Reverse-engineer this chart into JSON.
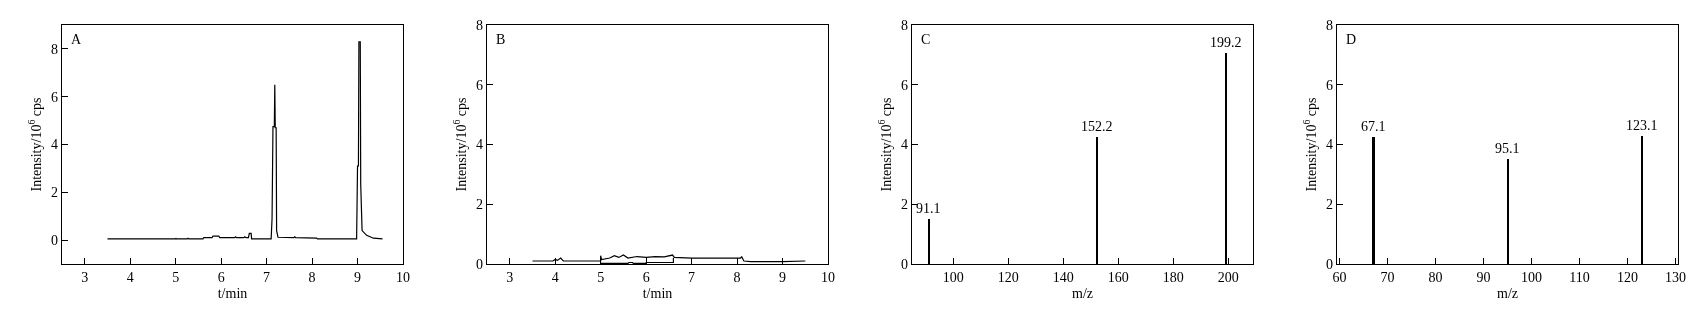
{
  "chart_data": [
    {
      "type": "line",
      "xlabel": "t/min",
      "ylabel": "Intensity/10$^{6}$ cps",
      "annotations": [
        "A"
      ],
      "xlim": [
        2.5,
        10
      ],
      "xticks": [
        3,
        4,
        5,
        6,
        7,
        8,
        9,
        10
      ],
      "ylim": [
        -1,
        9
      ],
      "yticks": [
        0,
        2,
        4,
        6,
        8
      ],
      "series": [
        {
          "color": "#000000",
          "x": [
            3.5,
            5.0,
            5.0,
            5.02,
            5.25,
            5.27,
            5.29,
            5.6,
            5.62,
            5.8,
            5.82,
            5.95,
            5.97,
            6.3,
            6.32,
            6.34,
            6.5,
            6.52,
            6.55,
            6.6,
            6.62,
            6.66,
            6.67,
            7.1,
            7.12,
            7.14,
            7.17,
            7.18,
            7.19,
            7.21,
            7.22,
            7.25,
            7.6,
            7.62,
            7.64,
            8.1,
            8.12,
            8.98,
            9.0,
            9.02,
            9.03,
            9.06,
            9.07,
            9.1,
            9.2,
            9.35,
            9.55
          ],
          "values": [
            0.05,
            0.05,
            0.08,
            0.05,
            0.05,
            0.08,
            0.05,
            0.05,
            0.1,
            0.1,
            0.17,
            0.17,
            0.1,
            0.1,
            0.14,
            0.1,
            0.1,
            0.14,
            0.1,
            0.1,
            0.28,
            0.28,
            0.05,
            0.05,
            0.9,
            4.75,
            4.75,
            6.5,
            4.7,
            4.7,
            0.4,
            0.12,
            0.1,
            0.14,
            0.1,
            0.08,
            0.05,
            0.05,
            3.1,
            3.1,
            8.3,
            8.3,
            2.35,
            0.4,
            0.2,
            0.08,
            0.05
          ]
        }
      ]
    },
    {
      "type": "line",
      "xlabel": "t/min",
      "ylabel": "Intensity/10$^{6}$ cps",
      "annotations": [
        "B"
      ],
      "xlim": [
        2.5,
        10
      ],
      "xticks": [
        3,
        4,
        5,
        6,
        7,
        8,
        9,
        10
      ],
      "ylim": [
        0,
        8
      ],
      "yticks": [
        0,
        2,
        4,
        6,
        8
      ],
      "series": [
        {
          "color": "#000000",
          "x": [
            3.5,
            3.95,
            4.0,
            4.05,
            4.12,
            4.18,
            5.0,
            5.0,
            5.02,
            5.2,
            5.3,
            5.4,
            5.5,
            5.6,
            5.8,
            6.0,
            6.2,
            6.4,
            6.58,
            6.62,
            7.0,
            8.08,
            8.1,
            8.15,
            8.3,
            9.0,
            9.5
          ],
          "values": [
            0.1,
            0.1,
            0.15,
            0.12,
            0.2,
            0.1,
            0.1,
            0.28,
            0.15,
            0.2,
            0.28,
            0.22,
            0.3,
            0.2,
            0.25,
            0.22,
            0.25,
            0.24,
            0.3,
            0.22,
            0.2,
            0.2,
            0.25,
            0.1,
            0.08,
            0.08,
            0.1
          ]
        },
        {
          "color": "#000000",
          "x": [
            5.0,
            5.6,
            5.62,
            5.7,
            5.72,
            6.0,
            6.0,
            6.6,
            6.6
          ],
          "values": [
            0.02,
            0.02,
            0.05,
            0.05,
            0.02,
            0.02,
            0.05,
            0.05,
            0.2
          ]
        }
      ]
    },
    {
      "type": "bar",
      "xlabel": "m/z",
      "ylabel": "Intensity/10$^{6}$ cps",
      "annotations": [
        "C",
        {
          "text": "91.1",
          "x": 91.1,
          "y": 1.5
        },
        {
          "text": "152.2",
          "x": 152.2,
          "y": 4.25
        },
        {
          "text": "199.2",
          "x": 199.2,
          "y": 7.05
        }
      ],
      "xlim": [
        85,
        209
      ],
      "xticks": [
        100,
        120,
        140,
        160,
        180,
        200
      ],
      "ylim": [
        0,
        8
      ],
      "yticks": [
        0,
        2,
        4,
        6,
        8
      ],
      "color": "#000000",
      "x": [
        91.1,
        152.2,
        199.2
      ],
      "values": [
        1.5,
        4.25,
        7.05
      ]
    },
    {
      "type": "bar",
      "xlabel": "m/z",
      "ylabel": "Intensity/10$^{6}$ cps",
      "annotations": [
        "D",
        {
          "text": "67.1",
          "x": 67.1,
          "y": 4.25
        },
        {
          "text": "95.1",
          "x": 95.1,
          "y": 3.52
        },
        {
          "text": "123.1",
          "x": 123.1,
          "y": 4.28
        }
      ],
      "xlim": [
        59.5,
        130.5
      ],
      "xticks": [
        60,
        70,
        80,
        90,
        100,
        110,
        120,
        130
      ],
      "ylim": [
        0,
        8
      ],
      "yticks": [
        0,
        2,
        4,
        6,
        8
      ],
      "color": "#000000",
      "x": [
        67.1,
        95.1,
        123.1
      ],
      "values": [
        4.25,
        3.52,
        4.28
      ]
    }
  ]
}
